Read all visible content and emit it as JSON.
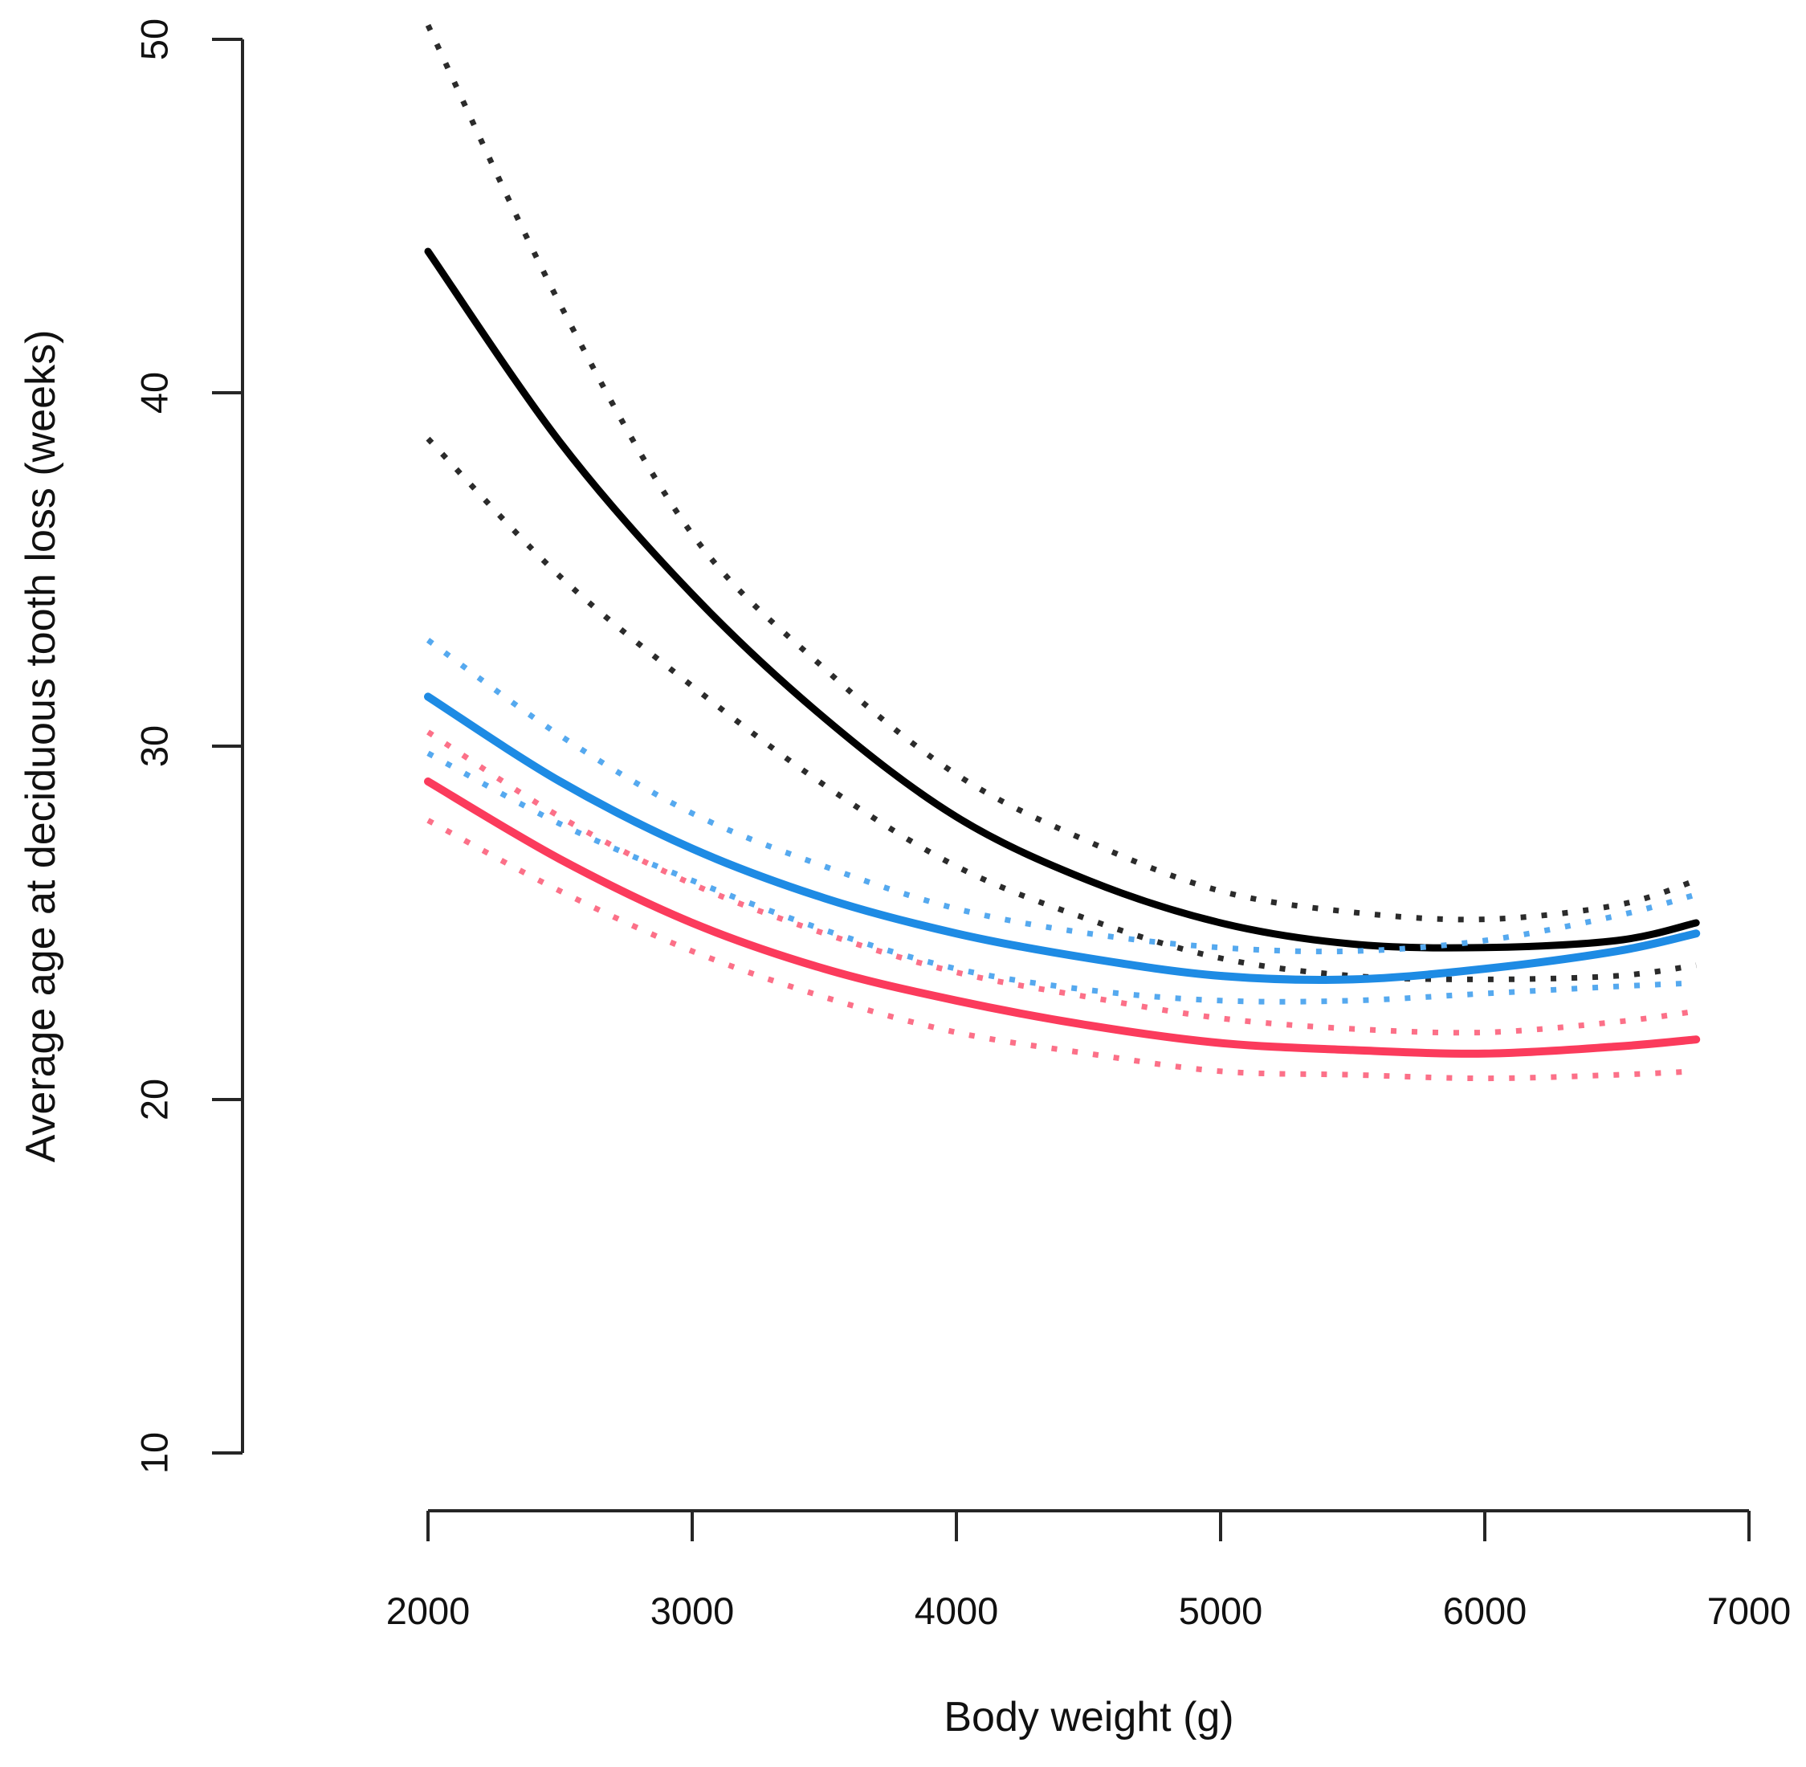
{
  "chart_data": {
    "type": "line",
    "title": "",
    "xlabel": "Body weight (g)",
    "ylabel": "Average age at deciduous tooth loss (weeks)",
    "xlim": [
      2000,
      7000
    ],
    "ylim": [
      10,
      50
    ],
    "x_ticks": [
      2000,
      3000,
      4000,
      5000,
      6000,
      7000
    ],
    "y_ticks": [
      10,
      20,
      30,
      40,
      50
    ],
    "grid": false,
    "legend": "none",
    "axis_color": "#262626",
    "x": [
      2000,
      2500,
      3000,
      3500,
      4000,
      4500,
      5000,
      5500,
      6000,
      6500,
      6800
    ],
    "series": [
      {
        "name": "black mean",
        "role": "mean",
        "line": "solid",
        "color": "#000000",
        "values": [
          44.0,
          38.6,
          34.3,
          30.8,
          28.0,
          26.2,
          25.0,
          24.4,
          24.3,
          24.5,
          25.0
        ]
      },
      {
        "name": "black upper CI",
        "role": "upper-ci",
        "line": "dotted",
        "color": "#2b2b2b",
        "values": [
          50.4,
          42.5,
          36.0,
          32.2,
          29.2,
          27.3,
          25.9,
          25.3,
          25.1,
          25.5,
          26.2
        ]
      },
      {
        "name": "black lower CI",
        "role": "lower-ci",
        "line": "dotted",
        "color": "#2b2b2b",
        "values": [
          38.7,
          34.8,
          31.7,
          28.9,
          26.6,
          25.1,
          24.0,
          23.5,
          23.4,
          23.5,
          23.8
        ]
      },
      {
        "name": "blue mean",
        "role": "mean",
        "line": "solid",
        "color": "#1E8BE4",
        "values": [
          31.4,
          29.0,
          27.1,
          25.7,
          24.7,
          24.0,
          23.5,
          23.4,
          23.7,
          24.2,
          24.7
        ]
      },
      {
        "name": "blue upper CI",
        "role": "upper-ci",
        "line": "dotted",
        "color": "#55A9EF",
        "values": [
          33.0,
          30.3,
          28.1,
          26.6,
          25.4,
          24.7,
          24.3,
          24.2,
          24.5,
          25.2,
          25.8
        ]
      },
      {
        "name": "blue lower CI",
        "role": "lower-ci",
        "line": "dotted",
        "color": "#55A9EF",
        "values": [
          29.8,
          27.8,
          26.2,
          24.8,
          23.7,
          23.1,
          22.8,
          22.8,
          23.0,
          23.2,
          23.3
        ]
      },
      {
        "name": "red mean",
        "role": "mean",
        "line": "solid",
        "color": "#FB3B5C",
        "values": [
          29.0,
          26.8,
          25.0,
          23.7,
          22.8,
          22.1,
          21.6,
          21.4,
          21.3,
          21.5,
          21.7
        ]
      },
      {
        "name": "red upper CI",
        "role": "upper-ci",
        "line": "dotted",
        "color": "#FC7088",
        "values": [
          30.4,
          28.0,
          26.1,
          24.7,
          23.6,
          22.9,
          22.3,
          22.0,
          21.9,
          22.2,
          22.5
        ]
      },
      {
        "name": "red lower CI",
        "role": "lower-ci",
        "line": "dotted",
        "color": "#FC7088",
        "values": [
          27.9,
          25.9,
          24.2,
          22.9,
          21.9,
          21.3,
          20.8,
          20.7,
          20.6,
          20.7,
          20.8
        ]
      }
    ]
  }
}
